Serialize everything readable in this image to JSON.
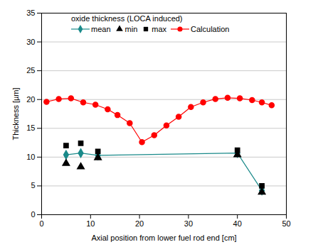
{
  "chart_data": {
    "type": "line",
    "xlabel": "Axial position from lower fuel rod end [cm]",
    "ylabel": "Thickness [µm]",
    "legend_title": "oxide thickness (LOCA induced)",
    "legend": "top",
    "grid": true,
    "xlim": [
      0,
      50
    ],
    "xticks": [
      0,
      10,
      20,
      30,
      40,
      50
    ],
    "ylim": [
      0,
      35
    ],
    "yticks": [
      0,
      5,
      10,
      15,
      20,
      25,
      30,
      35
    ],
    "series": [
      {
        "name": "mean",
        "color": "#1a8a8a",
        "marker": "diamond",
        "line_style": "solid",
        "x": [
          5,
          8,
          11.5,
          40,
          45
        ],
        "values": [
          10.4,
          10.7,
          10.3,
          10.7,
          4.2
        ]
      },
      {
        "name": "min",
        "color": "#000000",
        "marker": "triangle",
        "line_style": "none",
        "x": [
          5,
          8,
          11.5,
          40,
          45
        ],
        "values": [
          8.9,
          8.3,
          9.9,
          10.4,
          3.9
        ]
      },
      {
        "name": "max",
        "color": "#000000",
        "marker": "square",
        "line_style": "none",
        "x": [
          5,
          8,
          11.5,
          40,
          45
        ],
        "values": [
          12.0,
          12.4,
          11.0,
          11.2,
          5.0
        ]
      },
      {
        "name": "Calculation",
        "color": "#ff0000",
        "marker": "circle",
        "line_style": "solid",
        "x": [
          1,
          3.5,
          6,
          8.5,
          11,
          13.5,
          15.5,
          18,
          20.5,
          23,
          25.5,
          28,
          30.5,
          33,
          35.5,
          38,
          40.5,
          43,
          45,
          47
        ],
        "values": [
          19.6,
          20.1,
          20.2,
          19.5,
          19.1,
          18.3,
          17.3,
          15.9,
          12.6,
          13.8,
          15.5,
          17.0,
          18.7,
          19.5,
          20.1,
          20.3,
          20.2,
          19.9,
          19.5,
          19.0
        ]
      }
    ]
  }
}
